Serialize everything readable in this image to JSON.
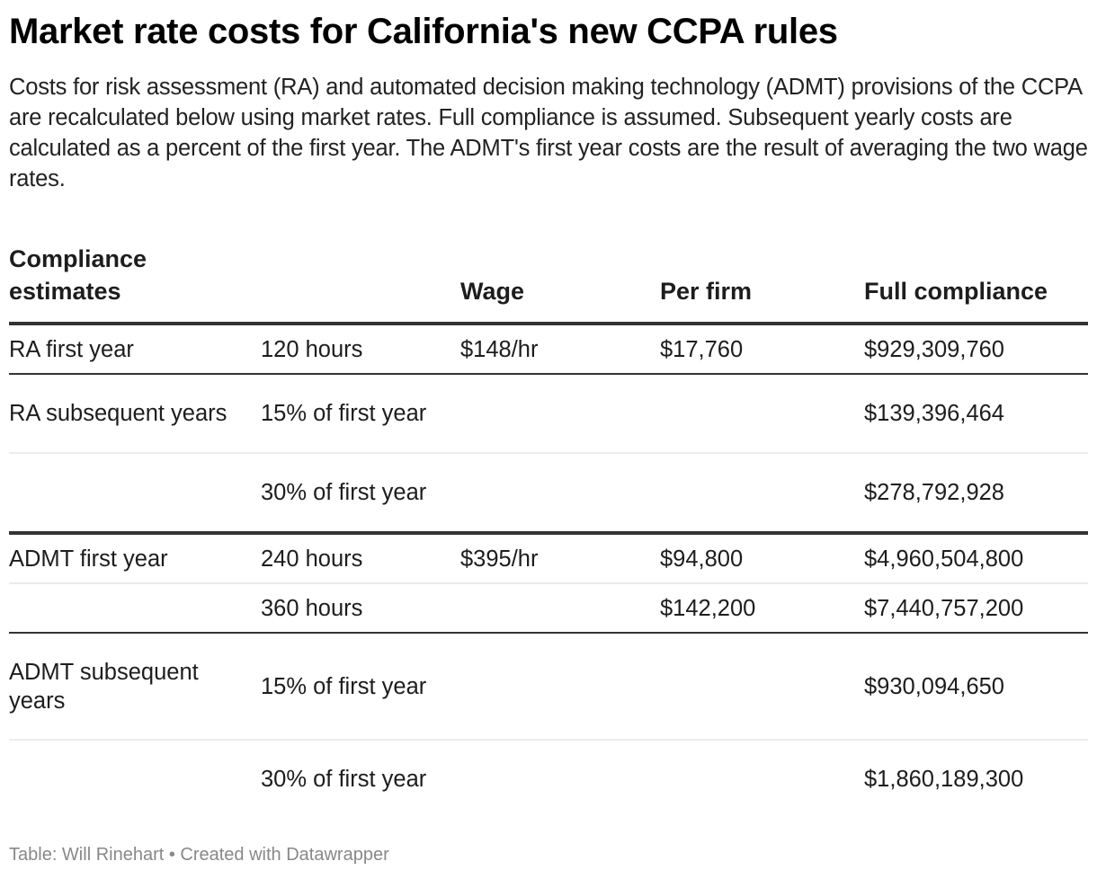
{
  "title": "Market rate costs for California's new CCPA rules",
  "description": "Costs for risk assessment (RA) and automated decision making technology (ADMT) provisions of the CCPA are recalculated below using market rates. Full compliance is assumed. Subsequent yearly costs are calculated as a percent of the first year. The ADMT's first year costs are the result of averaging the two wage rates.",
  "table": {
    "headers": [
      "Compliance estimates",
      "",
      "Wage",
      "Per firm",
      "Full compliance"
    ],
    "rows": [
      {
        "estimate": "RA first year",
        "basis": "120 hours",
        "wage": "$148/hr",
        "per_firm": "$17,760",
        "full": "$929,309,760"
      },
      {
        "estimate": "RA subsequent years",
        "basis": "15% of first year",
        "wage": "",
        "per_firm": "",
        "full": "$139,396,464"
      },
      {
        "estimate": "",
        "basis": "30% of first year",
        "wage": "",
        "per_firm": "",
        "full": "$278,792,928"
      },
      {
        "estimate": "ADMT first year",
        "basis": "240 hours",
        "wage": "$395/hr",
        "per_firm": "$94,800",
        "full": "$4,960,504,800"
      },
      {
        "estimate": "",
        "basis": "360 hours",
        "wage": "",
        "per_firm": "$142,200",
        "full": "$7,440,757,200"
      },
      {
        "estimate": "ADMT subsequent years",
        "basis": "15% of first year",
        "wage": "",
        "per_firm": "",
        "full": "$930,094,650"
      },
      {
        "estimate": "",
        "basis": "30% of first year",
        "wage": "",
        "per_firm": "",
        "full": "$1,860,189,300"
      }
    ]
  },
  "footer": "Table: Will Rinehart • Created with Datawrapper"
}
